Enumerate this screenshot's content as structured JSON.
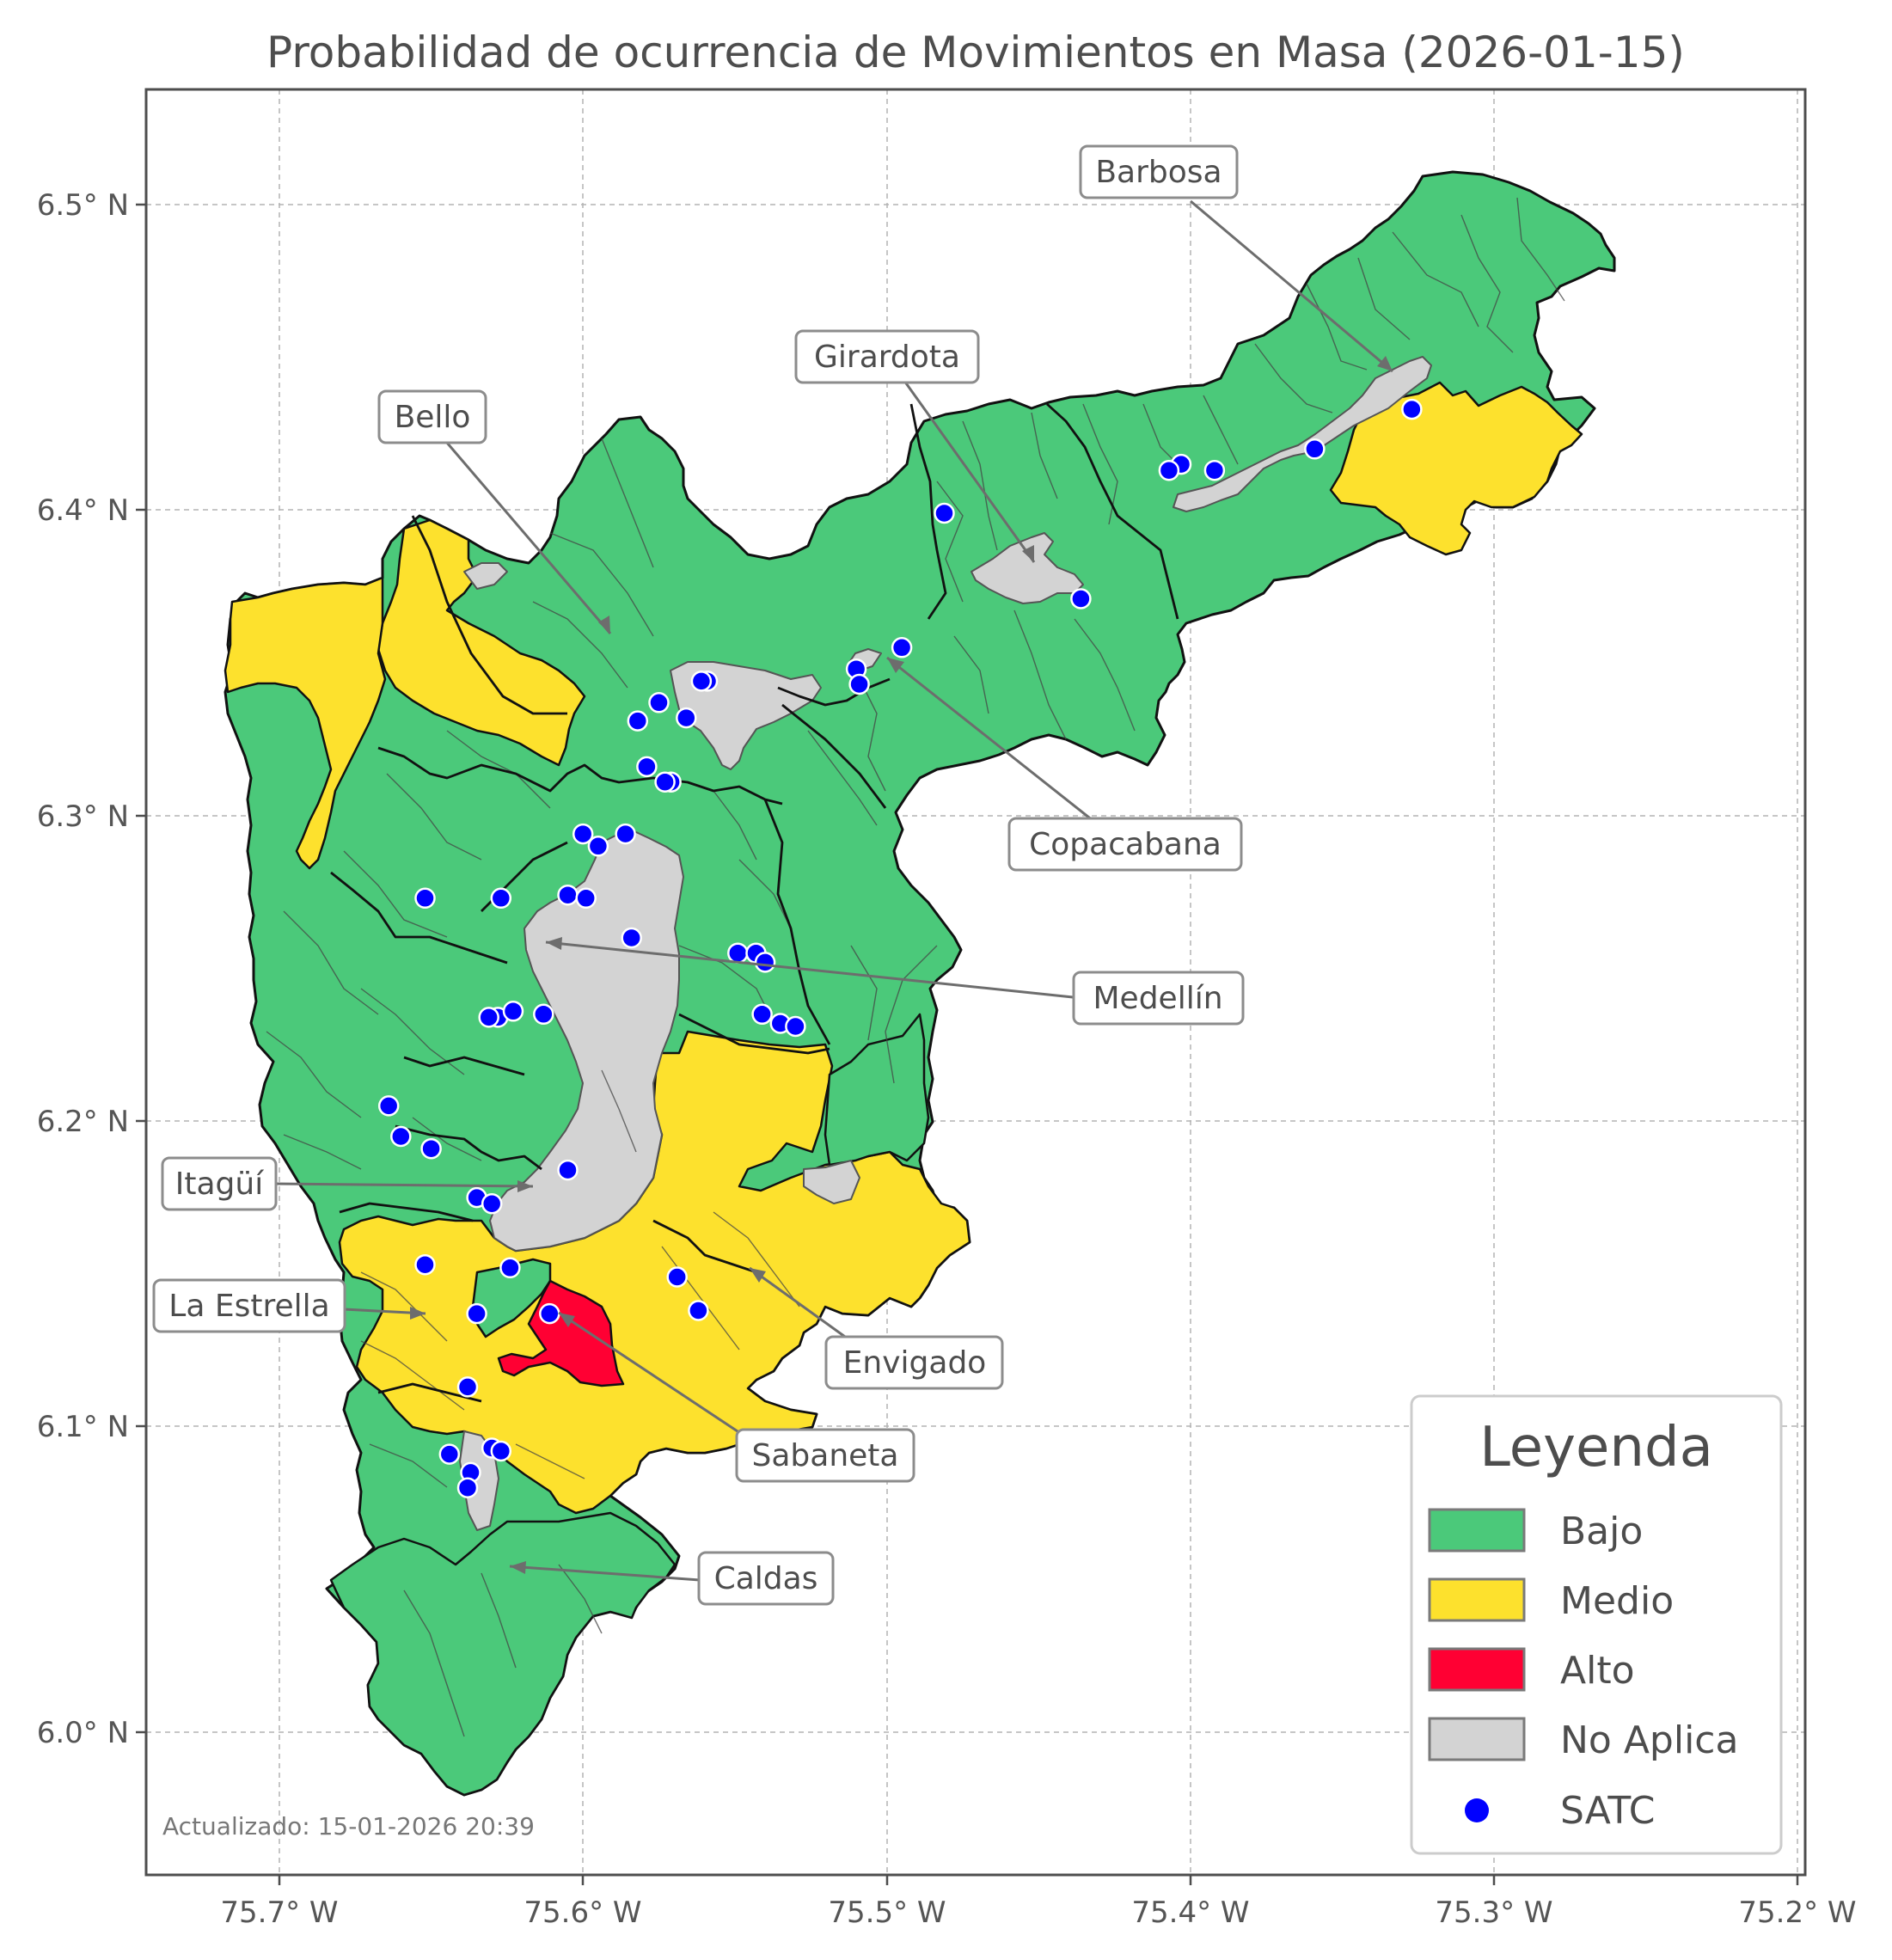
{
  "title": "Probabilidad de ocurrencia de Movimientos en Masa (2026-01-15)",
  "axes": {
    "x_ticks": [
      "75.7° W",
      "75.6° W",
      "75.5° W",
      "75.4° W",
      "75.3° W",
      "75.2° W"
    ],
    "y_ticks": [
      "6.5° N",
      "6.4° N",
      "6.3° N",
      "6.2° N",
      "6.1° N",
      "6.0° N"
    ],
    "lon_range": [
      -75.745,
      -75.195
    ],
    "lat_range": [
      5.955,
      6.54
    ],
    "grid": true
  },
  "municipalities": [
    {
      "name": "Barbosa",
      "lon": -75.331,
      "lat": 6.446
    },
    {
      "name": "Girardota",
      "lon": -75.448,
      "lat": 6.382
    },
    {
      "name": "Bello",
      "lon": -75.593,
      "lat": 6.36
    },
    {
      "name": "Copacabana",
      "lon": -75.499,
      "lat": 6.352
    },
    {
      "name": "Medellín",
      "lon": -75.607,
      "lat": 6.258
    },
    {
      "name": "Itagüí",
      "lon": -75.617,
      "lat": 6.18
    },
    {
      "name": "La Estrella",
      "lon": -75.634,
      "lat": 6.138
    },
    {
      "name": "Envigado",
      "lon": -75.545,
      "lat": 6.153
    },
    {
      "name": "Sabaneta",
      "lon": -75.608,
      "lat": 6.138
    },
    {
      "name": "Caldas",
      "lon": -75.623,
      "lat": 6.055
    }
  ],
  "legend": {
    "title": "Leyenda",
    "items": [
      {
        "label": "Bajo",
        "color": "#4bc97a",
        "kind": "patch"
      },
      {
        "label": "Medio",
        "color": "#fde12d",
        "kind": "patch"
      },
      {
        "label": "Alto",
        "color": "#ff0033",
        "kind": "patch"
      },
      {
        "label": "No Aplica",
        "color": "#d3d3d3",
        "kind": "patch"
      },
      {
        "label": "SATC",
        "color": "#0000ff",
        "kind": "marker"
      }
    ]
  },
  "updated_text": "Actualizado: 15-01-2026 20:39",
  "satc_stations": [
    [
      -75.327,
      6.433
    ],
    [
      -75.359,
      6.42
    ],
    [
      -75.392,
      6.413
    ],
    [
      -75.403,
      6.415
    ],
    [
      -75.407,
      6.413
    ],
    [
      -75.481,
      6.399
    ],
    [
      -75.436,
      6.371
    ],
    [
      -75.495,
      6.355
    ],
    [
      -75.51,
      6.348
    ],
    [
      -75.509,
      6.343
    ],
    [
      -75.559,
      6.344
    ],
    [
      -75.561,
      6.344
    ],
    [
      -75.575,
      6.337
    ],
    [
      -75.582,
      6.331
    ],
    [
      -75.566,
      6.332
    ],
    [
      -75.579,
      6.316
    ],
    [
      -75.571,
      6.311
    ],
    [
      -75.573,
      6.311
    ],
    [
      -75.6,
      6.294
    ],
    [
      -75.595,
      6.29
    ],
    [
      -75.586,
      6.294
    ],
    [
      -75.652,
      6.273
    ],
    [
      -75.627,
      6.273
    ],
    [
      -75.605,
      6.274
    ],
    [
      -75.599,
      6.273
    ],
    [
      -75.584,
      6.26
    ],
    [
      -75.549,
      6.255
    ],
    [
      -75.543,
      6.255
    ],
    [
      -75.54,
      6.252
    ],
    [
      -75.541,
      6.235
    ],
    [
      -75.535,
      6.232
    ],
    [
      -75.53,
      6.231
    ],
    [
      -75.628,
      6.234
    ],
    [
      -75.623,
      6.236
    ],
    [
      -75.631,
      6.234
    ],
    [
      -75.613,
      6.235
    ],
    [
      -75.664,
      6.205
    ],
    [
      -75.66,
      6.195
    ],
    [
      -75.65,
      6.191
    ],
    [
      -75.605,
      6.184
    ],
    [
      -75.635,
      6.175
    ],
    [
      -75.63,
      6.173
    ],
    [
      -75.652,
      6.153
    ],
    [
      -75.624,
      6.152
    ],
    [
      -75.635,
      6.137
    ],
    [
      -75.611,
      6.137
    ],
    [
      -75.569,
      6.149
    ],
    [
      -75.562,
      6.138
    ],
    [
      -75.638,
      6.113
    ],
    [
      -75.644,
      6.091
    ],
    [
      -75.637,
      6.085
    ],
    [
      -75.638,
      6.08
    ],
    [
      -75.63,
      6.093
    ],
    [
      -75.627,
      6.092
    ]
  ]
}
